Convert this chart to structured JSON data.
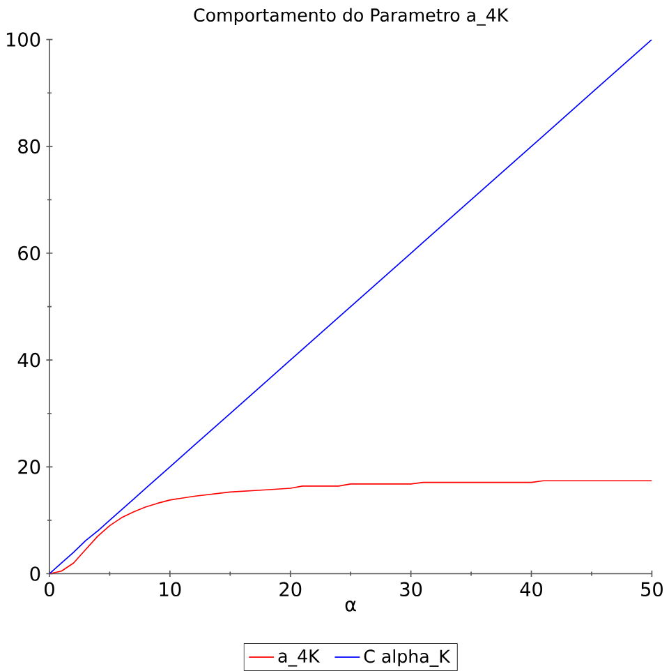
{
  "chart_data": {
    "type": "line",
    "title": "Comportamento do Parametro a_4K",
    "xlabel": "α",
    "x": [
      0,
      1,
      2,
      3,
      4,
      5,
      6,
      7,
      8,
      9,
      10,
      12,
      15,
      18,
      20,
      21,
      24,
      25,
      30,
      31,
      35,
      40,
      41,
      45,
      50
    ],
    "series": [
      {
        "name": "a_4K",
        "color": "#ff0000",
        "values": [
          0,
          0.5,
          2,
          4.5,
          7,
          9,
          10.5,
          11.6,
          12.5,
          13.2,
          13.8,
          14.5,
          15.3,
          15.7,
          16,
          16.4,
          16.4,
          16.8,
          16.8,
          17.1,
          17.1,
          17.1,
          17.4,
          17.4,
          17.4
        ]
      },
      {
        "name": "C alpha_K",
        "color": "#0000ff",
        "values": [
          0,
          2,
          4,
          6.2,
          8,
          10,
          12,
          14,
          16,
          18,
          20,
          24,
          30,
          36,
          40,
          42,
          48,
          50,
          60,
          62,
          70,
          80,
          82,
          90,
          100
        ]
      }
    ],
    "xlim": [
      0,
      50
    ],
    "ylim": [
      0,
      100
    ],
    "xticks": [
      0,
      10,
      20,
      30,
      40,
      50
    ],
    "yticks": [
      0,
      20,
      40,
      60,
      80,
      100
    ],
    "grid": false,
    "legend": "bottom",
    "marker": "none",
    "line_style": "solid"
  }
}
